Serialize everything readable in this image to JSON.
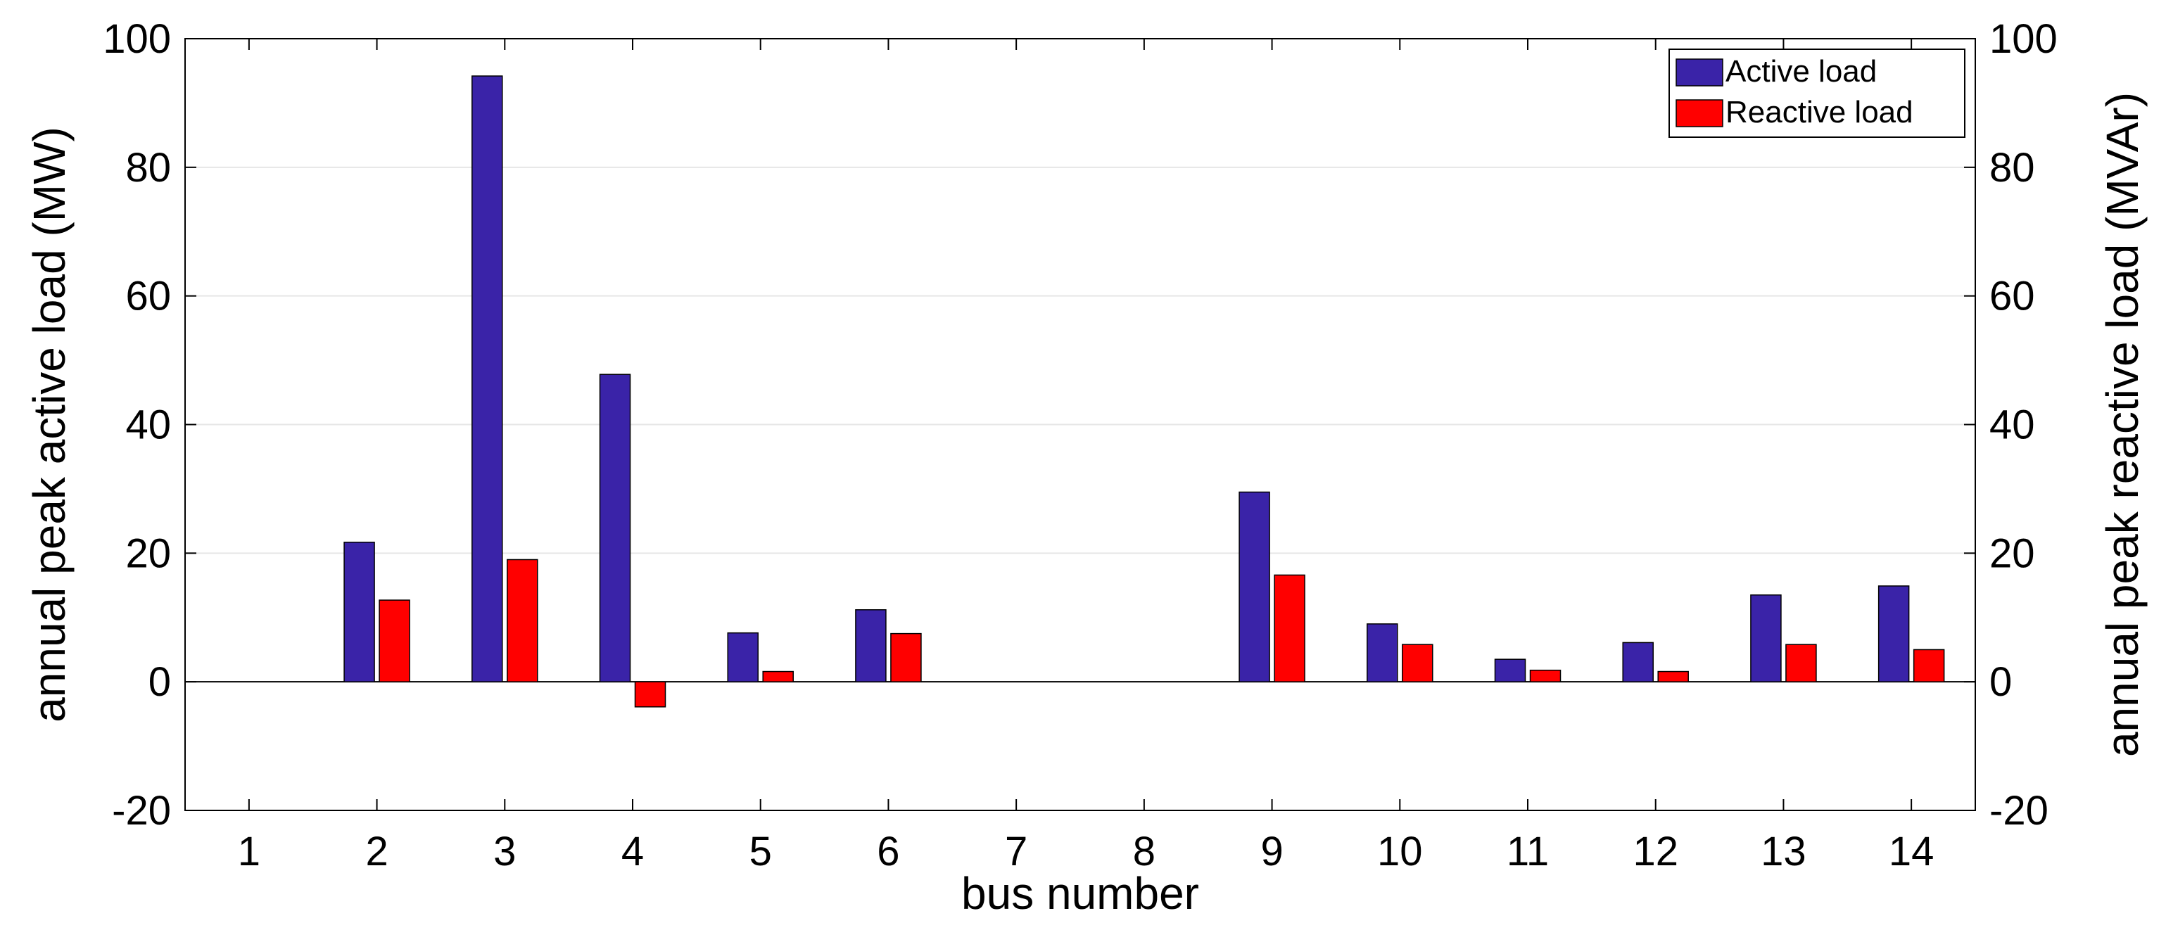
{
  "chart_data": {
    "type": "bar",
    "title": "",
    "xlabel": "bus number",
    "ylabel": "annual peak active load (MW)",
    "ylabel_right": "annual peak reactive load (MVAr)",
    "ylim": [
      -20,
      100
    ],
    "yticks": [
      -20,
      0,
      20,
      40,
      60,
      80,
      100
    ],
    "grid": "horizontal",
    "legend_position": "top-right",
    "categories": [
      "1",
      "2",
      "3",
      "4",
      "5",
      "6",
      "7",
      "8",
      "9",
      "10",
      "11",
      "12",
      "13",
      "14"
    ],
    "series": [
      {
        "name": "Active load",
        "color": "#3a23a8",
        "values": [
          0,
          21.7,
          94.2,
          47.8,
          7.6,
          11.2,
          0,
          0,
          29.5,
          9.0,
          3.5,
          6.1,
          13.5,
          14.9
        ]
      },
      {
        "name": "Reactive load",
        "color": "#ff0000",
        "values": [
          0,
          12.7,
          19.0,
          -3.9,
          1.6,
          7.5,
          0,
          0,
          16.6,
          5.8,
          1.8,
          1.6,
          5.8,
          5.0
        ]
      }
    ]
  }
}
